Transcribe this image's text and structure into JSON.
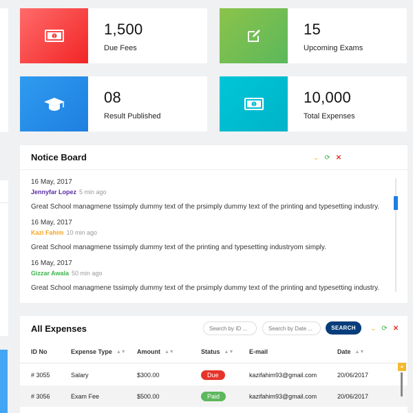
{
  "stats": [
    {
      "value": "1,500",
      "label": "Due Fees",
      "icon": "money-icon"
    },
    {
      "value": "15",
      "label": "Upcoming Exams",
      "icon": "edit-icon"
    },
    {
      "value": "08",
      "label": "Result Published",
      "icon": "graduation-cap-icon"
    },
    {
      "value": "10,000",
      "label": "Total Expenses",
      "icon": "money-icon"
    }
  ],
  "colors": {
    "red": "#f22525",
    "green": "#5cb85c",
    "blue": "#1e7fe0",
    "cyan": "#00b3c9",
    "navy": "#073d7a"
  },
  "notice": {
    "title": "Notice Board",
    "items": [
      {
        "date": "16 May, 2017",
        "author": "Jennyfar Lopez",
        "author_color": "#5b2ea6",
        "ago": "5 min ago",
        "text": "Great School managmene tssimply dummy text of the prsimply dummy text of the printing and typesetting industry."
      },
      {
        "date": "16 May, 2017",
        "author": "Kazi Fahim",
        "author_color": "#f5a623",
        "ago": "10 min ago",
        "text": "Great School managmene tssimply dummy text of the printing and typesetting industryom simply."
      },
      {
        "date": "16 May, 2017",
        "author": "Gizzar Awala",
        "author_color": "#3cb44b",
        "ago": "50 min ago",
        "text": "Great School managmene tssimply dummy text of the prsimply dummy text of the printing and typesetting industry."
      }
    ]
  },
  "expenses": {
    "title": "All Expenses",
    "search_id_placeholder": "Search by ID ...",
    "search_date_placeholder": "Search by Date ...",
    "search_button": "SEARCH",
    "columns": [
      "ID No",
      "Expense Type",
      "Amount",
      "Status",
      "E-mail",
      "Date"
    ],
    "rows": [
      {
        "id": "# 3055",
        "type": "Salary",
        "amount": "$300.00",
        "status": "Due",
        "email": "kazifahim93@gmail.com",
        "date": "20/06/2017"
      },
      {
        "id": "# 3056",
        "type": "Exam Fee",
        "amount": "$500.00",
        "status": "Paid",
        "email": "kazifahim93@gmail.com",
        "date": "20/06/2017"
      }
    ]
  }
}
